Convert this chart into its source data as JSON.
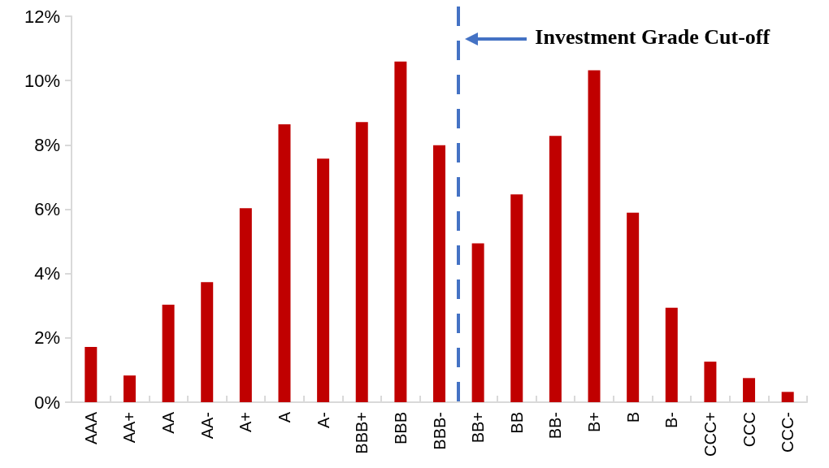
{
  "chart_data": {
    "type": "bar",
    "categories": [
      "AAA",
      "AA+",
      "AA",
      "AA-",
      "A+",
      "A",
      "A-",
      "BBB+",
      "BBB",
      "BBB-",
      "BB+",
      "BB",
      "BB-",
      "B+",
      "B",
      "B-",
      "CCC+",
      "CCC",
      "CCC-"
    ],
    "values": [
      1.72,
      0.83,
      3.03,
      3.73,
      6.03,
      8.64,
      7.57,
      8.71,
      10.59,
      7.99,
      4.94,
      6.46,
      8.28,
      10.32,
      5.89,
      2.94,
      1.26,
      0.75,
      0.32
    ],
    "color": "#c00000",
    "ylim": [
      0,
      12
    ],
    "yticks": [
      {
        "value": 0,
        "label": "0%"
      },
      {
        "value": 2,
        "label": "2%"
      },
      {
        "value": 4,
        "label": "4%"
      },
      {
        "value": 6,
        "label": "6%"
      },
      {
        "value": 8,
        "label": "8%"
      },
      {
        "value": 10,
        "label": "10%"
      },
      {
        "value": 12,
        "label": "12%"
      }
    ],
    "annotations": [
      "Investment Grade Cut-off"
    ],
    "grid": false
  }
}
